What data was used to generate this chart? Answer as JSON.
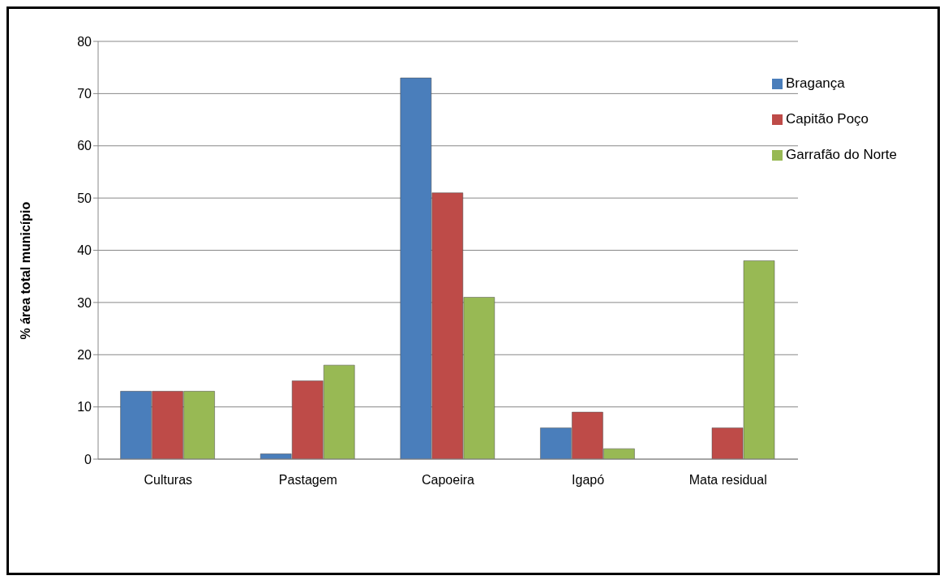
{
  "chart_data": {
    "type": "bar",
    "ylabel": "% área total município",
    "categories": [
      "Culturas",
      "Pastagem",
      "Capoeira",
      "Igapó",
      "Mata residual"
    ],
    "series": [
      {
        "name": "Bragança",
        "color": "#4a7ebb",
        "values": [
          13,
          1,
          73,
          6,
          0
        ]
      },
      {
        "name": "Capitão Poço",
        "color": "#be4b48",
        "values": [
          13,
          15,
          51,
          9,
          6
        ]
      },
      {
        "name": "Garrafão do Norte",
        "color": "#98b954",
        "values": [
          13,
          18,
          31,
          2,
          38
        ]
      }
    ],
    "ylim": [
      0,
      80
    ],
    "yticks": [
      0,
      10,
      20,
      30,
      40,
      50,
      60,
      70,
      80
    ],
    "grid": "y",
    "legend": "top right"
  }
}
